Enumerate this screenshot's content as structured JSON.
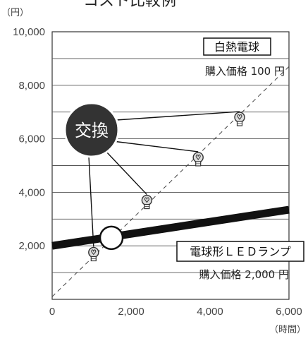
{
  "chart_data": {
    "type": "line",
    "title": "コスト比較例",
    "y_unit": "（円）",
    "x_unit": "（時間）",
    "xlim": [
      0,
      6000
    ],
    "ylim": [
      0,
      10000
    ],
    "x_ticks": [
      "0",
      "2,000",
      "4,000",
      "6,000"
    ],
    "y_ticks": [
      "2,000",
      "4,000",
      "6,000",
      "8,000",
      "10,000"
    ],
    "grid": "horizontal",
    "series": [
      {
        "name": "白熱電球",
        "price_note": "購入価格 100 円",
        "style": "dashed",
        "x": [
          0,
          6000
        ],
        "y": [
          100,
          8700
        ]
      },
      {
        "name": "電球形ＬＥＤランプ",
        "price_note": "購入価格 2,000 円",
        "style": "thick",
        "x": [
          0,
          6000
        ],
        "y": [
          2000,
          3350
        ]
      }
    ],
    "replacement_points": [
      {
        "x": 1050,
        "y": 1650
      },
      {
        "x": 2400,
        "y": 3600
      },
      {
        "x": 3700,
        "y": 5200
      },
      {
        "x": 4750,
        "y": 6700
      }
    ],
    "crossover_point": {
      "x": 1500,
      "y": 2300
    },
    "annotation": "交換",
    "colors": {
      "led_line": "#111111",
      "dashed_line": "#444444",
      "grid": "#555555",
      "badge": "#333333"
    }
  }
}
